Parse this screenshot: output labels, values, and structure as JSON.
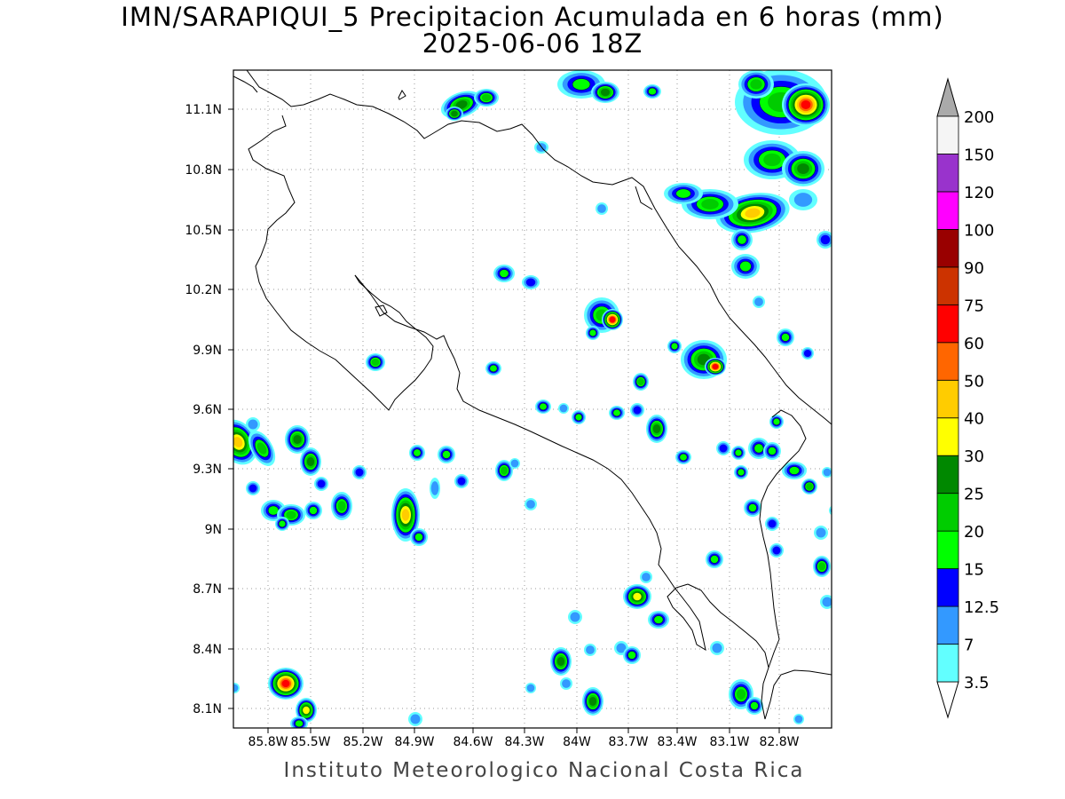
{
  "title": {
    "line1": "IMN/SARAPIQUI_5 Precipitacion Acumulada en 6 horas (mm)",
    "line2": "2025-06-06 18Z"
  },
  "credit": "Instituto Meteorologico Nacional Costa Rica",
  "map": {
    "lat_ticks": [
      "11.1N",
      "10.8N",
      "10.5N",
      "10.2N",
      "9.9N",
      "9.6N",
      "9.3N",
      "9N",
      "8.7N",
      "8.4N",
      "8.1N"
    ],
    "lon_ticks": [
      "85.8W",
      "85.5W",
      "85.2W",
      "84.9W",
      "84.6W",
      "84.3W",
      "84W",
      "83.7W",
      "83.4W",
      "83.1W",
      "82.8W"
    ]
  },
  "colorbar": {
    "levels": [
      "3.5",
      "7",
      "12.5",
      "15",
      "20",
      "25",
      "30",
      "40",
      "50",
      "60",
      "75",
      "90",
      "100",
      "120",
      "150",
      "200"
    ],
    "colors": [
      "#62ffff",
      "#3399ff",
      "#0000ff",
      "#00ff00",
      "#00cc00",
      "#008800",
      "#ffff00",
      "#ffcc00",
      "#ff6600",
      "#ff0000",
      "#cc3300",
      "#990000",
      "#ff00ff",
      "#9933cc",
      "#f5f5f5"
    ],
    "under_color": "#ffffff",
    "over_color": "#aaaaaa"
  }
}
